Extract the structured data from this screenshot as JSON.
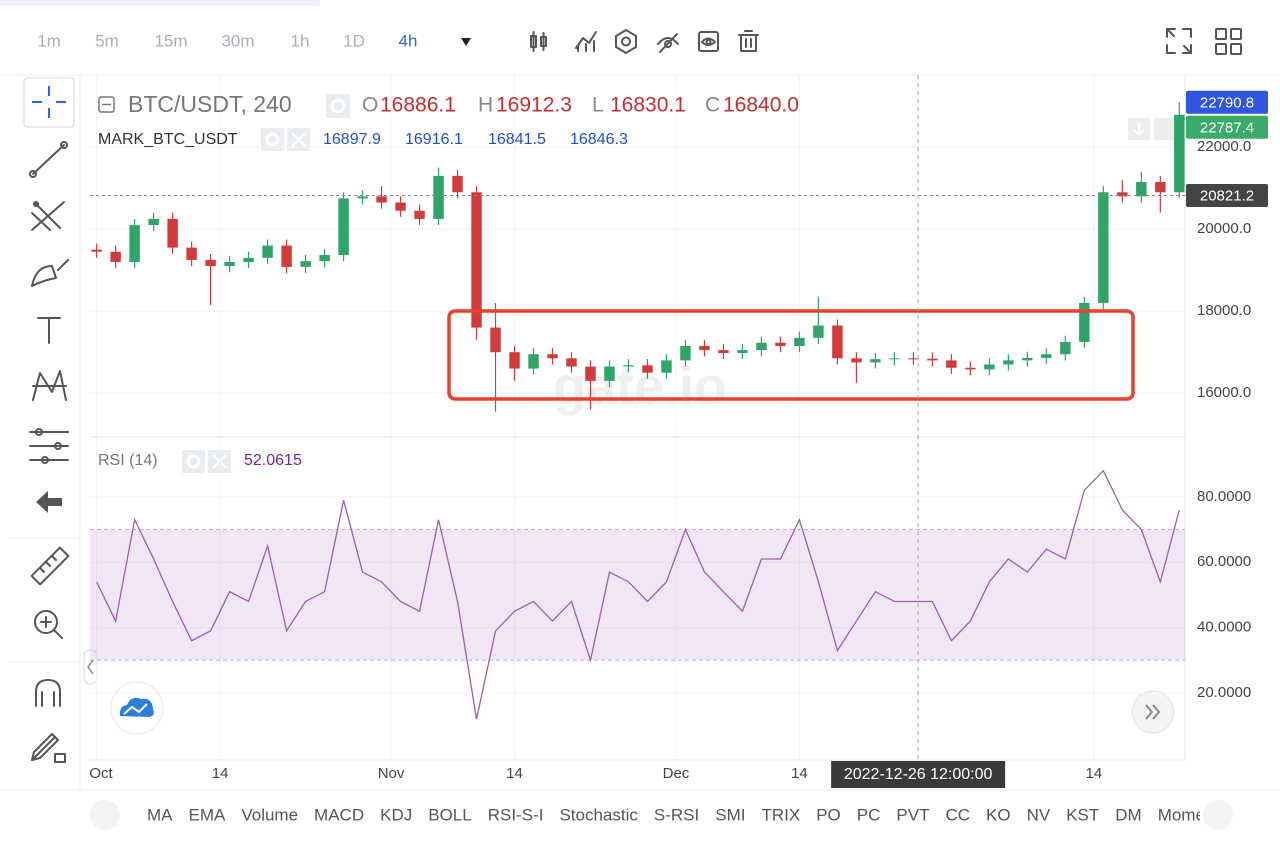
{
  "toolbar": {
    "intervals": [
      "1m",
      "5m",
      "15m",
      "30m",
      "1h",
      "1D",
      "4h"
    ],
    "active_interval_index": 6
  },
  "chart_data": [
    {
      "type": "candlestick",
      "title": "BTC/USDT, 240",
      "ohlc_legend": [
        {
          "label": "O",
          "value": "16886.1"
        },
        {
          "label": "H",
          "value": "16912.3"
        },
        {
          "label": "L",
          "value": "16830.1"
        },
        {
          "label": "C",
          "value": "16840.0"
        }
      ],
      "mark_legend": {
        "name": "MARK_BTC_USDT",
        "values": [
          "16897.9",
          "16916.1",
          "16841.5",
          "16846.3"
        ],
        "color": "#1f4fd6"
      },
      "watermark": "gate.io",
      "up_color": "#2fa56a",
      "down_color": "#d23b3b",
      "x": [
        0,
        2,
        4,
        6,
        8,
        10,
        12,
        14,
        16,
        18,
        20,
        22,
        24,
        26,
        28,
        30,
        32,
        34,
        36,
        38,
        40,
        42,
        44,
        46,
        48,
        50,
        52,
        54,
        56,
        58,
        60,
        62,
        64,
        66,
        68,
        70,
        72,
        74,
        76,
        78,
        80,
        82,
        84,
        86,
        88,
        90,
        92,
        94,
        96,
        98,
        100,
        102,
        104,
        106,
        108,
        110,
        112,
        114
      ],
      "open": [
        19500,
        19450,
        19200,
        20100,
        20250,
        19550,
        19250,
        19100,
        19200,
        19300,
        19600,
        19080,
        19220,
        19370,
        20750,
        20800,
        20650,
        20450,
        20250,
        21300,
        20900,
        17600,
        17000,
        16600,
        16950,
        16850,
        16650,
        16300,
        16650,
        16680,
        16500,
        16800,
        17150,
        17050,
        16980,
        17050,
        17230,
        17150,
        17350,
        17650,
        16850,
        16750,
        16830,
        16850,
        16840,
        16800,
        16620,
        16580,
        16700,
        16800,
        16860,
        16950,
        17250,
        18200,
        20900,
        20800,
        21150,
        20900
      ],
      "high": [
        19650,
        19600,
        20250,
        20400,
        20400,
        19700,
        19400,
        19350,
        19450,
        19750,
        19750,
        19370,
        19520,
        20900,
        20950,
        21050,
        20800,
        20600,
        21500,
        21450,
        21050,
        18200,
        17150,
        17100,
        17100,
        17000,
        16800,
        16800,
        16830,
        16830,
        16950,
        17300,
        17300,
        17200,
        17200,
        17380,
        17380,
        17500,
        18350,
        17800,
        17000,
        16980,
        17000,
        17000,
        16990,
        16950,
        16770,
        16850,
        16950,
        17010,
        17100,
        17400,
        18350,
        21050,
        21200,
        21400,
        21300,
        23100
      ],
      "low": [
        19300,
        19050,
        19050,
        19950,
        19400,
        19100,
        18150,
        18950,
        19050,
        19150,
        18930,
        18930,
        19070,
        19220,
        20600,
        20500,
        20300,
        20100,
        20100,
        20750,
        17300,
        15550,
        16300,
        16450,
        16700,
        16500,
        15600,
        16150,
        16500,
        16350,
        16350,
        16650,
        16900,
        16830,
        16830,
        16900,
        17000,
        17000,
        17200,
        16700,
        16250,
        16600,
        16680,
        16690,
        16650,
        16470,
        16430,
        16430,
        16550,
        16650,
        16710,
        16800,
        17100,
        18050,
        20650,
        20650,
        20400,
        20750
      ],
      "close": [
        19450,
        19200,
        20100,
        20250,
        19550,
        19250,
        19100,
        19200,
        19300,
        19600,
        19080,
        19220,
        19370,
        20750,
        20800,
        20650,
        20450,
        20250,
        21300,
        20900,
        17600,
        17000,
        16600,
        16950,
        16850,
        16650,
        16300,
        16650,
        16680,
        16500,
        16800,
        17150,
        17050,
        16980,
        17050,
        17230,
        17150,
        17350,
        17650,
        16850,
        16750,
        16830,
        16850,
        16840,
        16800,
        16620,
        16580,
        16700,
        16800,
        16860,
        16950,
        17250,
        18200,
        20900,
        20800,
        21150,
        20900,
        22790
      ],
      "xlim": [
        -0.7,
        114.6
      ],
      "xticks": [
        {
          "value": 0,
          "label": "Oct"
        },
        {
          "value": 13,
          "label": "14"
        },
        {
          "value": 31,
          "label": "Nov"
        },
        {
          "value": 44,
          "label": "14"
        },
        {
          "value": 61,
          "label": "Dec"
        },
        {
          "value": 74,
          "label": "14"
        },
        {
          "value": 105,
          "label": "14"
        }
      ],
      "ylim": [
        14980,
        23760
      ],
      "yticks": [
        {
          "value": 16000,
          "label": "16000.0"
        },
        {
          "value": 18000,
          "label": "18000.0"
        },
        {
          "value": 20000,
          "label": "20000.0"
        },
        {
          "value": 22000,
          "label": "22000.0"
        }
      ],
      "grid": true,
      "price_labels": [
        {
          "value": 22790.8,
          "color": "#2f56e0"
        },
        {
          "value": 22787.4,
          "color": "#3bab6a"
        },
        {
          "value": 20821.2,
          "color": "#444444",
          "dashed": true
        }
      ],
      "crosshair": {
        "x": 86.5,
        "label": "2022-12-26 12:00:00"
      }
    },
    {
      "type": "line",
      "title": "RSI (14)",
      "value_label": "52.0615",
      "color": "#a05bb5",
      "x": [
        0,
        2,
        4,
        6,
        8,
        10,
        12,
        14,
        16,
        18,
        20,
        22,
        24,
        26,
        28,
        30,
        32,
        34,
        36,
        38,
        40,
        42,
        44,
        46,
        48,
        50,
        52,
        54,
        56,
        58,
        60,
        62,
        64,
        66,
        68,
        70,
        72,
        74,
        76,
        78,
        80,
        82,
        84,
        86,
        88,
        90,
        92,
        94,
        96,
        98,
        100,
        102,
        104,
        106,
        108,
        110,
        112,
        114
      ],
      "values": [
        54,
        42,
        73,
        61,
        48,
        36,
        39,
        51,
        48,
        65,
        39,
        48,
        51,
        79,
        57,
        54,
        48,
        45,
        73,
        48,
        12,
        39,
        45,
        48,
        42,
        48,
        30,
        57,
        54,
        48,
        54,
        70,
        57,
        51,
        45,
        61,
        61,
        73,
        54,
        33,
        42,
        51,
        48,
        48,
        48,
        36,
        42,
        54,
        61,
        57,
        64,
        61,
        82,
        88,
        76,
        70,
        54,
        76
      ],
      "band": [
        30,
        70
      ],
      "ylim": [
        -0.5,
        97.4
      ],
      "yticks": [
        {
          "value": 20,
          "label": "20.0000"
        },
        {
          "value": 40,
          "label": "40.0000"
        },
        {
          "value": 60,
          "label": "60.0000"
        },
        {
          "value": 80,
          "label": "80.0000"
        }
      ]
    }
  ],
  "indicators": [
    "MA",
    "EMA",
    "Volume",
    "MACD",
    "KDJ",
    "BOLL",
    "RSI-S-I",
    "Stochastic",
    "S-RSI",
    "SMI",
    "TRIX",
    "PO",
    "PC",
    "PVT",
    "CC",
    "KO",
    "NV",
    "KST",
    "DM",
    "Momentum"
  ]
}
